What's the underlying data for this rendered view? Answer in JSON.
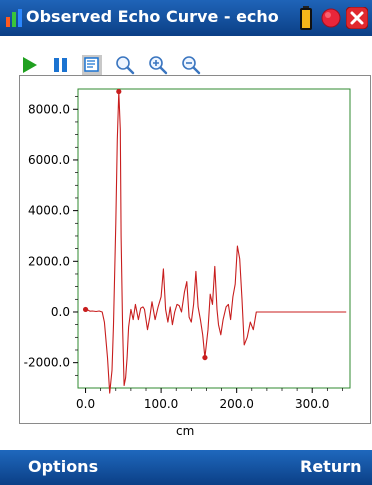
{
  "window": {
    "title": "Observed Echo Curve - echo"
  },
  "icons": {
    "app": "bar-chart-icon",
    "battery": "battery-icon",
    "record": "record-icon",
    "close": "close-icon",
    "play": "play-icon",
    "pause": "pause-icon",
    "select": "select-zoom-icon",
    "magnify": "magnifier-icon",
    "zoom_in": "zoom-in-icon",
    "zoom_out": "zoom-out-icon"
  },
  "colors": {
    "bar": "#0f4f9f",
    "curve": "#c81e1e",
    "plot_border": "#2f8a2f"
  },
  "chart_data": {
    "type": "line",
    "title": "",
    "xlabel": "cm",
    "ylabel": "",
    "xlim": [
      -10,
      350
    ],
    "ylim": [
      -3000,
      8800
    ],
    "x_ticks": [
      0,
      100,
      200,
      300
    ],
    "x_tick_labels": [
      "0.0",
      "100.0",
      "200.0",
      "300.0"
    ],
    "y_ticks": [
      -2000,
      0,
      2000,
      4000,
      6000,
      8000
    ],
    "y_tick_labels": [
      "-2000.0",
      "0.0",
      "2000.0",
      "4000.0",
      "6000.0",
      "8000.0"
    ],
    "series": [
      {
        "x": [
          0,
          3,
          6,
          9,
          14,
          18,
          22,
          25,
          29,
          32,
          35,
          37,
          40,
          42,
          44,
          46,
          47,
          49,
          51,
          53,
          55,
          57,
          60,
          63,
          66,
          70,
          73,
          76,
          78,
          82,
          85,
          88,
          92,
          96,
          100,
          103,
          106,
          109,
          112,
          115,
          118,
          121,
          124,
          127,
          131,
          134,
          137,
          140,
          143,
          146,
          149,
          152,
          155,
          158,
          162,
          165,
          168,
          171,
          174,
          176,
          179,
          182,
          186,
          189,
          192,
          195,
          198,
          201,
          204,
          207,
          210,
          214,
          218,
          222,
          226,
          235,
          260,
          300,
          345
        ],
        "y": [
          100,
          80,
          30,
          40,
          20,
          40,
          0,
          -400,
          -1800,
          -3200,
          -2300,
          -500,
          3500,
          6800,
          8700,
          7200,
          3000,
          -600,
          -2900,
          -2600,
          -1800,
          -600,
          100,
          -300,
          300,
          -300,
          150,
          200,
          100,
          -700,
          -200,
          400,
          -300,
          200,
          600,
          1700,
          100,
          -400,
          200,
          -500,
          0,
          300,
          250,
          0,
          800,
          1200,
          -200,
          -400,
          300,
          1600,
          200,
          -300,
          -900,
          -1800,
          -700,
          700,
          300,
          1800,
          100,
          -500,
          -900,
          -300,
          200,
          300,
          -300,
          600,
          1100,
          2600,
          2100,
          500,
          -1300,
          -1000,
          -400,
          -700,
          0,
          0,
          0,
          0,
          0
        ]
      }
    ],
    "markers": [
      {
        "x": 0,
        "y": 100
      },
      {
        "x": 44,
        "y": 8700
      },
      {
        "x": 158,
        "y": -1800
      }
    ]
  },
  "bottom": {
    "left": "Options",
    "right": "Return"
  }
}
